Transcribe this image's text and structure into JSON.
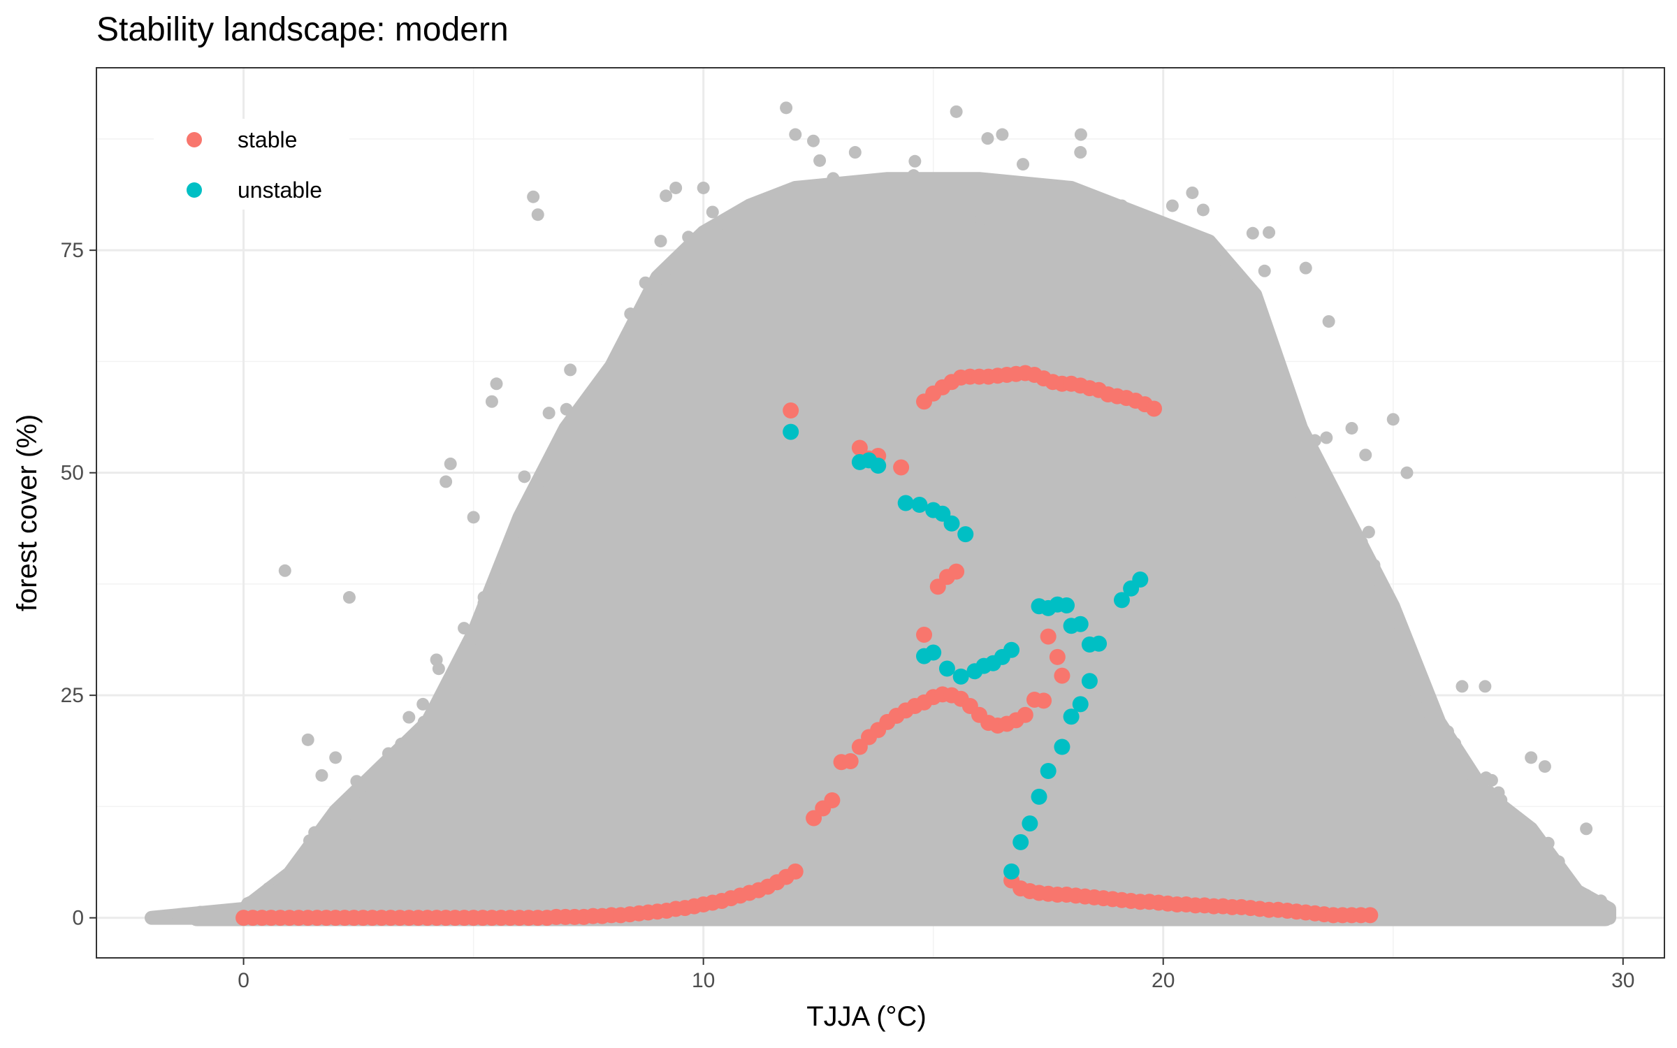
{
  "chart_data": {
    "type": "scatter",
    "title": "Stability landscape: modern",
    "xlabel": "TJJA (°C)",
    "ylabel": "forest cover (%)",
    "xlim": [
      -3.2,
      30.9
    ],
    "ylim": [
      -4.5,
      95.5
    ],
    "x_ticks": [
      0,
      10,
      20,
      30
    ],
    "y_ticks": [
      0,
      25,
      50,
      75
    ],
    "grid": true,
    "legend_position": "top-left",
    "background_points": {
      "color": "#bebebe",
      "description_bounds": "dense grey cloud of observations",
      "envelope": [
        [
          -2,
          0
        ],
        [
          0,
          1
        ],
        [
          1,
          5
        ],
        [
          2,
          12
        ],
        [
          3,
          17
        ],
        [
          4,
          22
        ],
        [
          5,
          32
        ],
        [
          6,
          45
        ],
        [
          7,
          55
        ],
        [
          8,
          62
        ],
        [
          9,
          72
        ],
        [
          10,
          77
        ],
        [
          11,
          80
        ],
        [
          12,
          82
        ],
        [
          14,
          83
        ],
        [
          16,
          83
        ],
        [
          18,
          82
        ],
        [
          20,
          78
        ],
        [
          21,
          76
        ],
        [
          22,
          70
        ],
        [
          23,
          55
        ],
        [
          24,
          45
        ],
        [
          25,
          35
        ],
        [
          26,
          22
        ],
        [
          27,
          14
        ],
        [
          28,
          10
        ],
        [
          29,
          3
        ],
        [
          29.7,
          1
        ]
      ],
      "outliers": [
        [
          11.8,
          91
        ],
        [
          16.5,
          88
        ],
        [
          12.0,
          88
        ],
        [
          6.3,
          81
        ],
        [
          6.4,
          79
        ],
        [
          0.9,
          39
        ],
        [
          2.3,
          36
        ],
        [
          4.5,
          51
        ],
        [
          4.4,
          49
        ],
        [
          5.5,
          60
        ],
        [
          5.4,
          58
        ],
        [
          26.5,
          26
        ],
        [
          27.0,
          26
        ],
        [
          28.0,
          18
        ],
        [
          28.3,
          17
        ],
        [
          29.2,
          10
        ],
        [
          25.0,
          56
        ],
        [
          25.3,
          50
        ],
        [
          -1.7,
          0
        ],
        [
          18.2,
          86
        ],
        [
          14.6,
          85
        ],
        [
          13.3,
          86
        ],
        [
          9.4,
          82
        ],
        [
          10.0,
          82
        ],
        [
          20.2,
          80
        ],
        [
          19.1,
          80
        ],
        [
          22.3,
          77
        ],
        [
          23.1,
          73
        ],
        [
          23.6,
          67
        ],
        [
          24.1,
          55
        ],
        [
          24.4,
          52
        ],
        [
          5.0,
          45
        ],
        [
          3.9,
          24
        ],
        [
          1.4,
          20
        ],
        [
          2.0,
          18
        ],
        [
          1.7,
          16
        ]
      ]
    },
    "series": [
      {
        "name": "stable",
        "color": "#f8766d",
        "points": [
          [
            0.0,
            0
          ],
          [
            0.2,
            0
          ],
          [
            0.4,
            0
          ],
          [
            0.6,
            0
          ],
          [
            0.8,
            0
          ],
          [
            1.0,
            0
          ],
          [
            1.2,
            0
          ],
          [
            1.4,
            0
          ],
          [
            1.6,
            0
          ],
          [
            1.8,
            0
          ],
          [
            2.0,
            0
          ],
          [
            2.2,
            0
          ],
          [
            2.4,
            0
          ],
          [
            2.6,
            0
          ],
          [
            2.8,
            0
          ],
          [
            3.0,
            0
          ],
          [
            3.2,
            0
          ],
          [
            3.4,
            0
          ],
          [
            3.6,
            0
          ],
          [
            3.8,
            0
          ],
          [
            4.0,
            0
          ],
          [
            4.2,
            0
          ],
          [
            4.4,
            0
          ],
          [
            4.6,
            0
          ],
          [
            4.8,
            0
          ],
          [
            5.0,
            0
          ],
          [
            5.2,
            0
          ],
          [
            5.4,
            0
          ],
          [
            5.6,
            0
          ],
          [
            5.8,
            0
          ],
          [
            6.0,
            0
          ],
          [
            6.2,
            0
          ],
          [
            6.4,
            0
          ],
          [
            6.6,
            0
          ],
          [
            6.8,
            0.1
          ],
          [
            7.0,
            0.1
          ],
          [
            7.2,
            0.1
          ],
          [
            7.4,
            0.1
          ],
          [
            7.6,
            0.2
          ],
          [
            7.8,
            0.2
          ],
          [
            8.0,
            0.3
          ],
          [
            8.2,
            0.3
          ],
          [
            8.4,
            0.4
          ],
          [
            8.6,
            0.5
          ],
          [
            8.8,
            0.6
          ],
          [
            9.0,
            0.7
          ],
          [
            9.2,
            0.8
          ],
          [
            9.4,
            1.0
          ],
          [
            9.6,
            1.1
          ],
          [
            9.8,
            1.3
          ],
          [
            10.0,
            1.5
          ],
          [
            10.2,
            1.7
          ],
          [
            10.4,
            1.9
          ],
          [
            10.6,
            2.2
          ],
          [
            10.8,
            2.5
          ],
          [
            11.0,
            2.8
          ],
          [
            11.2,
            3.1
          ],
          [
            11.4,
            3.5
          ],
          [
            11.6,
            4.0
          ],
          [
            11.8,
            4.6
          ],
          [
            12.0,
            5.2
          ],
          [
            12.4,
            11.2
          ],
          [
            12.6,
            12.3
          ],
          [
            12.8,
            13.2
          ],
          [
            13.0,
            17.5
          ],
          [
            13.2,
            17.6
          ],
          [
            13.4,
            19.2
          ],
          [
            13.6,
            20.3
          ],
          [
            13.8,
            21.1
          ],
          [
            14.0,
            22.0
          ],
          [
            14.2,
            22.7
          ],
          [
            14.4,
            23.3
          ],
          [
            14.6,
            23.8
          ],
          [
            14.8,
            24.2
          ],
          [
            15.0,
            24.8
          ],
          [
            15.2,
            25.1
          ],
          [
            15.4,
            25.0
          ],
          [
            15.6,
            24.6
          ],
          [
            15.8,
            23.8
          ],
          [
            16.0,
            22.8
          ],
          [
            16.2,
            21.9
          ],
          [
            16.4,
            21.6
          ],
          [
            16.6,
            21.8
          ],
          [
            16.8,
            22.2
          ],
          [
            17.0,
            22.8
          ],
          [
            17.2,
            24.5
          ],
          [
            17.4,
            24.4
          ],
          [
            11.9,
            57
          ],
          [
            13.4,
            52.8
          ],
          [
            13.6,
            51.6
          ],
          [
            13.8,
            51.9
          ],
          [
            14.3,
            50.6
          ],
          [
            14.8,
            58.0
          ],
          [
            15.0,
            58.9
          ],
          [
            15.2,
            59.6
          ],
          [
            15.4,
            60.2
          ],
          [
            15.6,
            60.7
          ],
          [
            15.8,
            60.8
          ],
          [
            16.0,
            60.8
          ],
          [
            16.2,
            60.8
          ],
          [
            16.4,
            60.9
          ],
          [
            16.6,
            61.0
          ],
          [
            16.8,
            61.1
          ],
          [
            17.0,
            61.2
          ],
          [
            17.2,
            61.0
          ],
          [
            17.4,
            60.6
          ],
          [
            17.6,
            60.2
          ],
          [
            17.8,
            60.0
          ],
          [
            18.0,
            60.0
          ],
          [
            18.2,
            59.8
          ],
          [
            18.4,
            59.5
          ],
          [
            18.6,
            59.3
          ],
          [
            18.8,
            58.8
          ],
          [
            19.0,
            58.6
          ],
          [
            19.2,
            58.4
          ],
          [
            19.4,
            58.1
          ],
          [
            19.6,
            57.7
          ],
          [
            19.8,
            57.2
          ],
          [
            15.1,
            37.2
          ],
          [
            15.3,
            38.3
          ],
          [
            15.5,
            38.9
          ],
          [
            14.8,
            31.8
          ],
          [
            17.5,
            31.6
          ],
          [
            17.7,
            29.3
          ],
          [
            17.8,
            27.2
          ],
          [
            16.7,
            4.2
          ],
          [
            16.9,
            3.3
          ],
          [
            17.1,
            3.0
          ],
          [
            17.3,
            2.8
          ],
          [
            17.5,
            2.7
          ],
          [
            17.7,
            2.6
          ],
          [
            17.9,
            2.6
          ],
          [
            18.1,
            2.5
          ],
          [
            18.3,
            2.4
          ],
          [
            18.5,
            2.3
          ],
          [
            18.7,
            2.2
          ],
          [
            18.9,
            2.1
          ],
          [
            19.1,
            2.0
          ],
          [
            19.3,
            1.9
          ],
          [
            19.5,
            1.8
          ],
          [
            19.7,
            1.8
          ],
          [
            19.9,
            1.7
          ],
          [
            20.1,
            1.6
          ],
          [
            20.3,
            1.5
          ],
          [
            20.5,
            1.5
          ],
          [
            20.7,
            1.4
          ],
          [
            20.9,
            1.4
          ],
          [
            21.1,
            1.3
          ],
          [
            21.3,
            1.3
          ],
          [
            21.5,
            1.2
          ],
          [
            21.7,
            1.2
          ],
          [
            21.9,
            1.1
          ],
          [
            22.1,
            1.0
          ],
          [
            22.3,
            0.9
          ],
          [
            22.5,
            0.9
          ],
          [
            22.7,
            0.8
          ],
          [
            22.9,
            0.7
          ],
          [
            23.1,
            0.6
          ],
          [
            23.3,
            0.5
          ],
          [
            23.5,
            0.4
          ],
          [
            23.7,
            0.3
          ],
          [
            23.9,
            0.3
          ],
          [
            24.1,
            0.3
          ],
          [
            24.3,
            0.3
          ],
          [
            24.5,
            0.3
          ]
        ]
      },
      {
        "name": "unstable",
        "color": "#00bfc4",
        "points": [
          [
            11.9,
            54.6
          ],
          [
            13.4,
            51.2
          ],
          [
            13.6,
            51.4
          ],
          [
            13.8,
            50.8
          ],
          [
            14.4,
            46.6
          ],
          [
            14.7,
            46.4
          ],
          [
            15.0,
            45.8
          ],
          [
            15.2,
            45.4
          ],
          [
            15.4,
            44.3
          ],
          [
            15.7,
            43.1
          ],
          [
            14.8,
            29.4
          ],
          [
            15.0,
            29.8
          ],
          [
            15.3,
            28.0
          ],
          [
            15.6,
            27.1
          ],
          [
            15.9,
            27.7
          ],
          [
            16.1,
            28.3
          ],
          [
            16.3,
            28.6
          ],
          [
            16.5,
            29.3
          ],
          [
            16.7,
            30.1
          ],
          [
            17.3,
            35.0
          ],
          [
            17.5,
            34.8
          ],
          [
            17.7,
            35.2
          ],
          [
            17.9,
            35.1
          ],
          [
            18.0,
            32.8
          ],
          [
            18.2,
            33.0
          ],
          [
            18.4,
            30.7
          ],
          [
            18.6,
            30.8
          ],
          [
            19.1,
            35.7
          ],
          [
            19.3,
            37.0
          ],
          [
            19.5,
            38.0
          ],
          [
            16.7,
            5.2
          ],
          [
            16.9,
            8.5
          ],
          [
            17.1,
            10.6
          ],
          [
            17.3,
            13.6
          ],
          [
            17.5,
            16.5
          ],
          [
            17.8,
            19.2
          ],
          [
            18.0,
            22.6
          ],
          [
            18.2,
            24.0
          ],
          [
            18.4,
            26.6
          ]
        ]
      }
    ]
  }
}
